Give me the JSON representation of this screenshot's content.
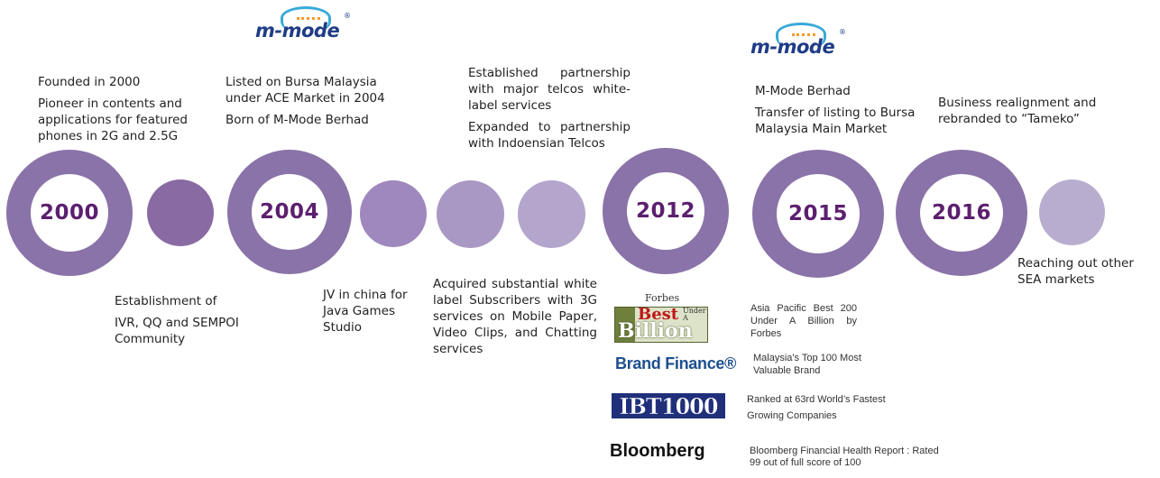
{
  "milestones": {
    "y2000": {
      "year": "2000",
      "lines": [
        "Founded in 2000",
        "Pioneer in contents and applications for featured phones in 2G and 2.5G"
      ]
    },
    "y2004": {
      "year": "2004",
      "lines": [
        "Listed on Bursa Malaysia under ACE Market in 2004",
        "Born of M-Mode Berhad"
      ]
    },
    "y2012": {
      "year": "2012",
      "lines": [
        "Established partnership with major telcos white-label services",
        "Expanded to partnership with Indoensian Telcos"
      ]
    },
    "y2015": {
      "year": "2015",
      "lines": [
        "M-Mode Berhad",
        "Transfer of listing to Bursa Malaysia Main Market"
      ]
    },
    "y2016": {
      "year": "2016",
      "lines": [
        "Business realignment and rebranded to “Tameko”"
      ]
    }
  },
  "intermediate": {
    "ivr": {
      "lines": [
        "Establishment of",
        "IVR,  QQ and SEMPOI Community"
      ]
    },
    "jv": {
      "lines": [
        "JV in china for Java Games Studio"
      ]
    },
    "acquired": {
      "lines": [
        "Acquired substantial white label Subscribers with 3G services on Mobile Paper, Video Clips, and Chatting services"
      ]
    },
    "sea": {
      "lines": [
        "Reaching out other SEA markets"
      ]
    }
  },
  "logos": {
    "mmode_word": "m-mode",
    "mmode_reg": "®",
    "forbes_title": "Forbes",
    "forbes_best": "Best",
    "forbes_small": "Under A",
    "forbes_billion": "Billion",
    "brand_finance": "Brand Finance®",
    "ibt": "IBT1000",
    "bloomberg": "Bloomberg"
  },
  "awards": [
    {
      "text": "Asia Pacific Best 200 Under A Billion by Forbes"
    },
    {
      "text": "Malaysia's Top 100 Most Valuable Brand"
    },
    {
      "text": "Ranked at 63rd World’s Fastest Growing Companies"
    },
    {
      "text": "Bloomberg Financial Health Report : Rated 99 out of full score of 100"
    }
  ],
  "colors": {
    "ring": "#8a73a8",
    "year_text": "#5c1f6e",
    "dot_1": "#8a6aa3",
    "dot_2": "#9e88bd",
    "dot_3": "#a998c4",
    "dot_4": "#b3a5cc",
    "dot_5": "#b9adcf"
  }
}
